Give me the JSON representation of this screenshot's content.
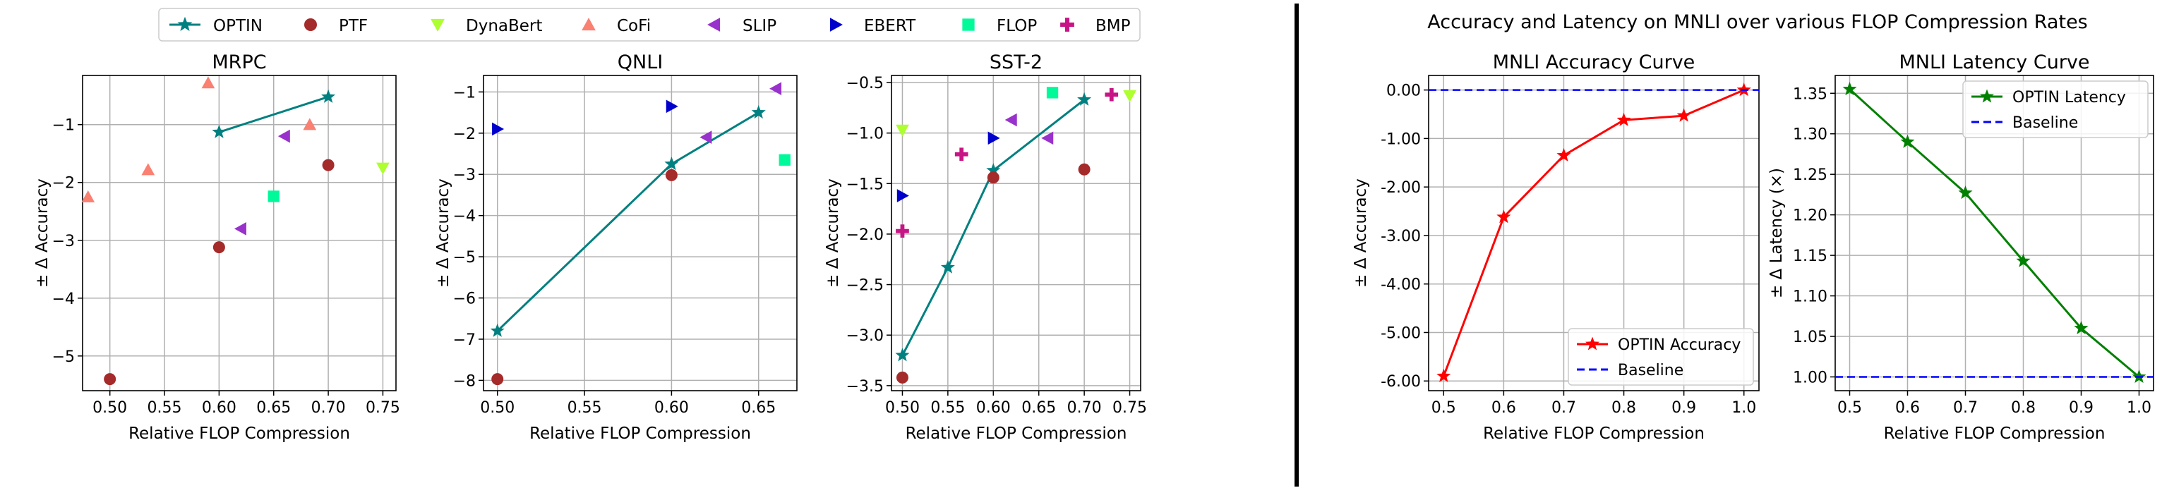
{
  "figure_title": "Accuracy and Latency on MNLI over various FLOP Compression Rates",
  "legend": [
    {
      "name": "OPTIN",
      "color": "#008080",
      "marker": "star",
      "line": true
    },
    {
      "name": "PTF",
      "color": "#a52a2a",
      "marker": "circle"
    },
    {
      "name": "DynaBert",
      "color": "#adff2f",
      "marker": "triangle-down"
    },
    {
      "name": "CoFi",
      "color": "#fa8072",
      "marker": "triangle-up"
    },
    {
      "name": "SLIP",
      "color": "#9932cc",
      "marker": "triangle-left"
    },
    {
      "name": "EBERT",
      "color": "#0000cd",
      "marker": "triangle-right"
    },
    {
      "name": "FLOP",
      "color": "#00fa9a",
      "marker": "square"
    },
    {
      "name": "BMP",
      "color": "#c71585",
      "marker": "plus"
    }
  ],
  "chart_data": [
    {
      "type": "scatter",
      "title": "MRPC",
      "xlabel": "Relative FLOP Compression",
      "ylabel": "± Δ Accuracy",
      "xlim": [
        0.475,
        0.762
      ],
      "ylim": [
        -5.6,
        -0.15
      ],
      "xticks": [
        0.5,
        0.55,
        0.6,
        0.65,
        0.7,
        0.75
      ],
      "xtick_labels": [
        "0.50",
        "0.55",
        "0.60",
        "0.65",
        "0.70",
        "0.75"
      ],
      "yticks": [
        -5,
        -4,
        -3,
        -2,
        -1
      ],
      "ytick_labels": [
        "−5",
        "−4",
        "−3",
        "−2",
        "−1"
      ],
      "series": [
        {
          "name": "OPTIN",
          "points": [
            [
              0.6,
              -1.13
            ],
            [
              0.7,
              -0.52
            ]
          ]
        },
        {
          "name": "PTF",
          "points": [
            [
              0.5,
              -5.4
            ],
            [
              0.6,
              -3.12
            ],
            [
              0.7,
              -1.7
            ]
          ]
        },
        {
          "name": "DynaBert",
          "points": [
            [
              0.75,
              -1.75
            ]
          ]
        },
        {
          "name": "CoFi",
          "points": [
            [
              0.48,
              -2.25
            ],
            [
              0.535,
              -1.78
            ],
            [
              0.59,
              -0.28
            ],
            [
              0.683,
              -1.0
            ]
          ]
        },
        {
          "name": "SLIP",
          "points": [
            [
              0.62,
              -2.8
            ],
            [
              0.66,
              -1.2
            ]
          ]
        },
        {
          "name": "FLOP",
          "points": [
            [
              0.65,
              -2.24
            ]
          ]
        }
      ]
    },
    {
      "type": "scatter",
      "title": "QNLI",
      "xlabel": "Relative FLOP Compression",
      "ylabel": "± Δ Accuracy",
      "xlim": [
        0.492,
        0.672
      ],
      "ylim": [
        -8.25,
        -0.6
      ],
      "xticks": [
        0.5,
        0.55,
        0.6,
        0.65
      ],
      "xtick_labels": [
        "0.50",
        "0.55",
        "0.60",
        "0.65"
      ],
      "yticks": [
        -8,
        -7,
        -6,
        -5,
        -4,
        -3,
        -2,
        -1
      ],
      "ytick_labels": [
        "−8",
        "−7",
        "−6",
        "−5",
        "−4",
        "−3",
        "−2",
        "−1"
      ],
      "series": [
        {
          "name": "OPTIN",
          "points": [
            [
              0.5,
              -6.8
            ],
            [
              0.6,
              -2.75
            ],
            [
              0.65,
              -1.5
            ]
          ]
        },
        {
          "name": "PTF",
          "points": [
            [
              0.5,
              -7.97
            ],
            [
              0.6,
              -3.02
            ]
          ]
        },
        {
          "name": "SLIP",
          "points": [
            [
              0.62,
              -2.1
            ],
            [
              0.66,
              -0.92
            ]
          ]
        },
        {
          "name": "EBERT",
          "points": [
            [
              0.5,
              -1.9
            ],
            [
              0.6,
              -1.35
            ]
          ]
        },
        {
          "name": "FLOP",
          "points": [
            [
              0.665,
              -2.65
            ]
          ]
        }
      ]
    },
    {
      "type": "scatter",
      "title": "SST-2",
      "xlabel": "Relative FLOP Compression",
      "ylabel": "± Δ Accuracy",
      "xlim": [
        0.488,
        0.762
      ],
      "ylim": [
        -3.55,
        -0.43
      ],
      "xticks": [
        0.5,
        0.55,
        0.6,
        0.65,
        0.7,
        0.75
      ],
      "xtick_labels": [
        "0.50",
        "0.55",
        "0.60",
        "0.65",
        "0.70",
        "0.75"
      ],
      "yticks": [
        -3.5,
        -3.0,
        -2.5,
        -2.0,
        -1.5,
        -1.0,
        -0.5
      ],
      "ytick_labels": [
        "−3.5",
        "−3.0",
        "−2.5",
        "−2.0",
        "−1.5",
        "−1.0",
        "−0.5"
      ],
      "series": [
        {
          "name": "OPTIN",
          "points": [
            [
              0.5,
              -3.2
            ],
            [
              0.55,
              -2.33
            ],
            [
              0.6,
              -1.37
            ],
            [
              0.7,
              -0.67
            ]
          ]
        },
        {
          "name": "PTF",
          "points": [
            [
              0.5,
              -3.42
            ],
            [
              0.6,
              -1.44
            ],
            [
              0.7,
              -1.36
            ]
          ]
        },
        {
          "name": "DynaBert",
          "points": [
            [
              0.5,
              -0.97
            ],
            [
              0.75,
              -0.63
            ]
          ]
        },
        {
          "name": "SLIP",
          "points": [
            [
              0.62,
              -0.87
            ],
            [
              0.66,
              -1.05
            ]
          ]
        },
        {
          "name": "EBERT",
          "points": [
            [
              0.5,
              -1.62
            ],
            [
              0.6,
              -1.05
            ]
          ]
        },
        {
          "name": "FLOP",
          "points": [
            [
              0.665,
              -0.6
            ]
          ]
        },
        {
          "name": "BMP",
          "points": [
            [
              0.5,
              -1.97
            ],
            [
              0.565,
              -1.21
            ],
            [
              0.73,
              -0.62
            ]
          ]
        }
      ]
    },
    {
      "type": "line",
      "title": "MNLI Accuracy Curve",
      "xlabel": "Relative FLOP Compression",
      "ylabel": "± Δ Accuracy",
      "xlim": [
        0.475,
        1.025
      ],
      "ylim": [
        -6.2,
        0.3
      ],
      "xticks": [
        0.5,
        0.6,
        0.7,
        0.8,
        0.9,
        1.0
      ],
      "xtick_labels": [
        "0.5",
        "0.6",
        "0.7",
        "0.8",
        "0.9",
        "1.0"
      ],
      "yticks": [
        -6,
        -5,
        -4,
        -3,
        -2,
        -1,
        0
      ],
      "ytick_labels": [
        "-6.00",
        "-5.00",
        "-4.00",
        "-3.00",
        "-2.00",
        "-1.00",
        "0.00"
      ],
      "legend_position": "lower-right",
      "series": [
        {
          "name": "OPTIN Accuracy",
          "color": "#ff0000",
          "style": "solid",
          "marker": "star",
          "x": [
            0.5,
            0.6,
            0.7,
            0.8,
            0.9,
            1.0
          ],
          "y": [
            -5.9,
            -2.62,
            -1.35,
            -0.62,
            -0.53,
            0.0
          ]
        },
        {
          "name": "Baseline",
          "color": "#0000ff",
          "style": "dashed",
          "hline": 0.0
        }
      ]
    },
    {
      "type": "line",
      "title": "MNLI Latency Curve",
      "xlabel": "Relative FLOP Compression",
      "ylabel": "± Δ Latency (×)",
      "xlim": [
        0.475,
        1.025
      ],
      "ylim": [
        0.983,
        1.372
      ],
      "xticks": [
        0.5,
        0.6,
        0.7,
        0.8,
        0.9,
        1.0
      ],
      "xtick_labels": [
        "0.5",
        "0.6",
        "0.7",
        "0.8",
        "0.9",
        "1.0"
      ],
      "yticks": [
        1.0,
        1.05,
        1.1,
        1.15,
        1.2,
        1.25,
        1.3,
        1.35
      ],
      "ytick_labels": [
        "1.00",
        "1.05",
        "1.10",
        "1.15",
        "1.20",
        "1.25",
        "1.30",
        "1.35"
      ],
      "legend_position": "upper-right",
      "series": [
        {
          "name": "OPTIN Latency",
          "color": "#008000",
          "style": "solid",
          "marker": "star",
          "x": [
            0.5,
            0.6,
            0.7,
            0.8,
            0.9,
            1.0
          ],
          "y": [
            1.355,
            1.29,
            1.227,
            1.143,
            1.06,
            1.0
          ]
        },
        {
          "name": "Baseline",
          "color": "#0000ff",
          "style": "dashed",
          "hline": 1.0
        }
      ]
    }
  ]
}
